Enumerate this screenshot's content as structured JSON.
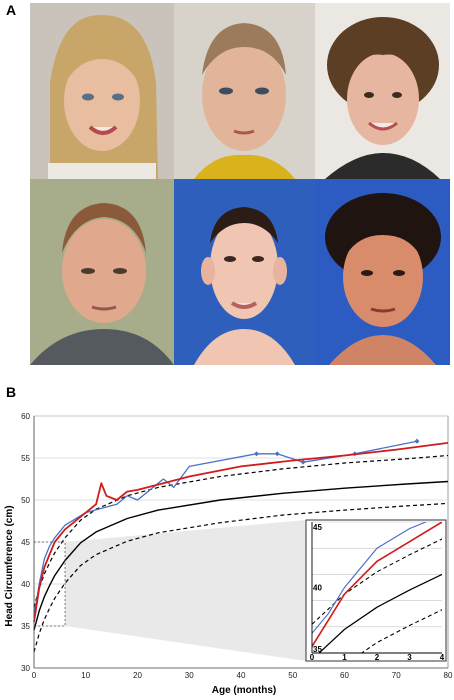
{
  "panels": {
    "a": "A",
    "b": "B"
  },
  "photos": [
    {
      "subject": "girl-blonde-hair"
    },
    {
      "subject": "boy-short-hair"
    },
    {
      "subject": "girl-curly-hair"
    },
    {
      "subject": "teen-boy-short-hair"
    },
    {
      "subject": "young-man-blue-background"
    },
    {
      "subject": "woman-dark-hair-blue-background"
    }
  ],
  "colors": {
    "blue_series": "#4a72c4",
    "red_series": "#d21b1b",
    "reference": "#000000",
    "inset_fill": "#e9e9e9"
  },
  "chart_data": {
    "type": "line",
    "xlabel": "Age (months)",
    "ylabel": "Head Circumference (cm)",
    "xlim": [
      0,
      80
    ],
    "ylim": [
      30,
      60
    ],
    "xticks": [
      0,
      10,
      20,
      30,
      40,
      50,
      60,
      70,
      80
    ],
    "yticks": [
      30,
      35,
      40,
      45,
      50,
      55,
      60
    ],
    "grid": true,
    "series": [
      {
        "style": "blue-diamond",
        "x": [
          0,
          0.5,
          1,
          2,
          3,
          4,
          6,
          10,
          13,
          16,
          18,
          20,
          22,
          25,
          27,
          30,
          43,
          47,
          52,
          62,
          74
        ],
        "y": [
          36.5,
          38,
          40,
          43,
          44.5,
          45.5,
          47,
          48.5,
          49,
          49.5,
          50.5,
          50,
          51,
          52.5,
          51.5,
          54,
          55.5,
          55.5,
          54.5,
          55.5,
          57
        ]
      },
      {
        "style": "red",
        "x": [
          0,
          0.5,
          1,
          2,
          3,
          4,
          6,
          10,
          12,
          13,
          14,
          16,
          18,
          20,
          25,
          30,
          40,
          50,
          60,
          70,
          80
        ],
        "y": [
          35.5,
          37.5,
          39.5,
          42,
          43.5,
          45,
          46.5,
          48.5,
          49.5,
          52,
          50.5,
          50,
          51,
          51.2,
          52,
          52.8,
          54,
          54.7,
          55.3,
          56,
          56.8
        ]
      },
      {
        "style": "black-solid",
        "x": [
          0,
          1,
          2,
          3,
          4,
          6,
          9,
          12,
          18,
          24,
          36,
          48,
          60,
          72,
          80
        ],
        "y": [
          34.5,
          36.8,
          38.5,
          39.8,
          41,
          42.8,
          44.9,
          46.2,
          47.8,
          48.8,
          50,
          50.8,
          51.4,
          51.9,
          52.2
        ]
      },
      {
        "style": "black-dashed-upper",
        "x": [
          0,
          1,
          2,
          3,
          4,
          6,
          9,
          12,
          18,
          24,
          36,
          48,
          60,
          72,
          80
        ],
        "y": [
          37.2,
          39.5,
          41.2,
          42.5,
          43.7,
          45.5,
          47.6,
          48.9,
          50.5,
          51.5,
          52.8,
          53.7,
          54.4,
          54.9,
          55.3
        ]
      },
      {
        "style": "black-dashed-lower",
        "x": [
          0,
          1,
          2,
          3,
          4,
          6,
          9,
          12,
          18,
          24,
          36,
          48,
          60,
          72,
          80
        ],
        "y": [
          31.9,
          34.1,
          35.8,
          37.1,
          38.3,
          40.1,
          42.2,
          43.5,
          45.1,
          46.1,
          47.3,
          48.2,
          48.8,
          49.3,
          49.6
        ]
      }
    ],
    "inset": {
      "xlim": [
        0,
        4
      ],
      "ylim": [
        35,
        45
      ],
      "xticks": [
        "0",
        "1",
        "2",
        "3",
        "4"
      ],
      "ylabels": [
        {
          "value": 35,
          "text": "35"
        },
        {
          "value": 40,
          "text": "40"
        },
        {
          "value": 45,
          "text": "45"
        }
      ],
      "zoom_box": {
        "x": [
          0,
          6
        ],
        "y": [
          35,
          45
        ]
      }
    }
  }
}
